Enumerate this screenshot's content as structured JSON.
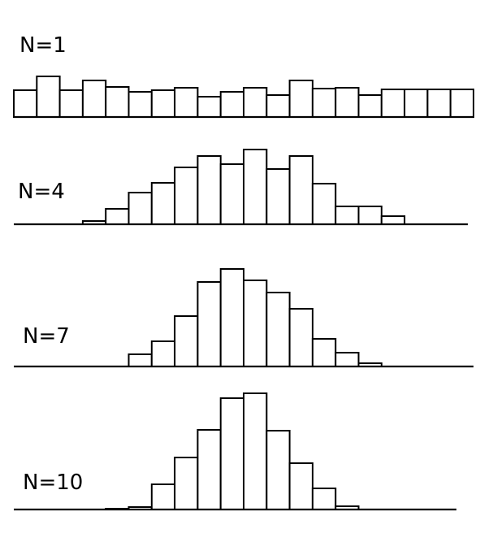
{
  "chart_data": [
    {
      "type": "bar",
      "panel_label": "N=1",
      "bins": 20,
      "values": [
        33,
        50,
        33,
        45,
        37,
        31,
        33,
        36,
        25,
        31,
        36,
        27,
        45,
        35,
        36,
        27,
        34,
        34,
        34,
        34
      ]
    },
    {
      "type": "bar",
      "panel_label": "N=4",
      "bins": 20,
      "values": [
        0,
        0,
        0,
        4,
        19,
        39,
        51,
        70,
        84,
        74,
        92,
        68,
        84,
        50,
        22,
        22,
        10,
        0,
        0,
        0
      ]
    },
    {
      "type": "bar",
      "panel_label": "N=7",
      "bins": 20,
      "values": [
        0,
        0,
        0,
        0,
        0,
        15,
        31,
        62,
        104,
        120,
        106,
        91,
        71,
        34,
        17,
        4,
        0,
        0,
        0,
        0
      ]
    },
    {
      "type": "bar",
      "panel_label": "N=10",
      "bins": 20,
      "values": [
        0,
        0,
        0,
        0,
        1,
        3,
        31,
        64,
        98,
        137,
        143,
        97,
        57,
        26,
        4,
        0,
        0,
        0,
        0,
        0
      ]
    }
  ],
  "style": {
    "bar_fill": "#ffffff",
    "bar_stroke": "#000000",
    "axis_color": "#000000"
  }
}
